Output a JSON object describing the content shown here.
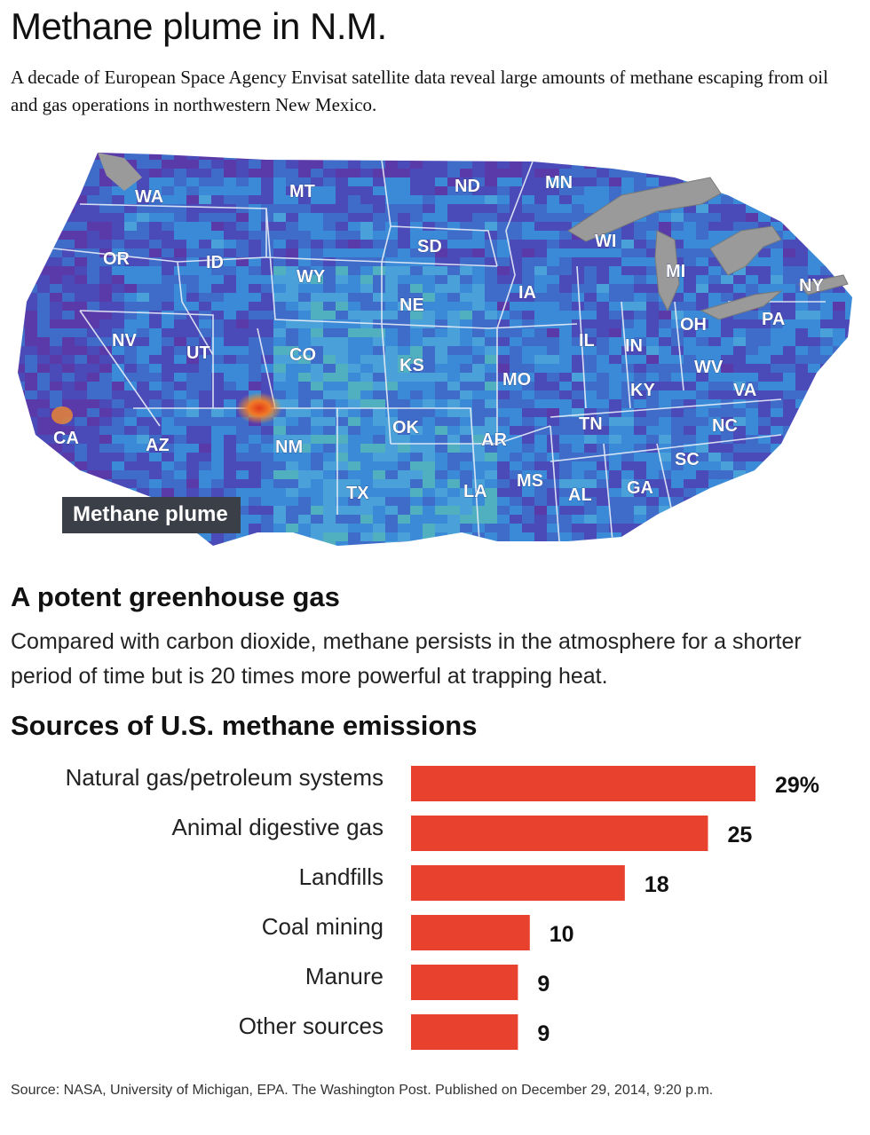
{
  "header": {
    "title": "Methane plume in N.M.",
    "subtitle": "A decade of European Space Agency Envisat satellite data reveal large amounts of methane escaping from oil and gas operations in northwestern New Mexico."
  },
  "map": {
    "states": [
      "WA",
      "MT",
      "ND",
      "MN",
      "OR",
      "ID",
      "SD",
      "WI",
      "WY",
      "MI",
      "NY",
      "IA",
      "NE",
      "PA",
      "NV",
      "UT",
      "OH",
      "CO",
      "IL",
      "IN",
      "KS",
      "WV",
      "MO",
      "KY",
      "VA",
      "CA",
      "AZ",
      "OK",
      "NM",
      "TN",
      "NC",
      "AR",
      "SC",
      "MS",
      "TX",
      "LA",
      "AL",
      "GA"
    ],
    "callout": "Methane plume",
    "colors": {
      "low": "#5a3aa8",
      "mid": "#3a8ad8",
      "high": "#6ac8a0",
      "hot": "#e84a20"
    }
  },
  "section": {
    "heading": "A potent greenhouse gas",
    "text": "Compared with carbon dioxide, methane persists in the atmosphere for a shorter period of time but is 20 times more powerful at trapping heat."
  },
  "chart_data": {
    "type": "bar",
    "orientation": "horizontal",
    "title": "Sources of U.S. methane emissions",
    "categories": [
      "Natural gas/petroleum systems",
      "Animal digestive gas",
      "Landfills",
      "Coal mining",
      "Manure",
      "Other sources"
    ],
    "values": [
      29,
      25,
      18,
      10,
      9,
      9
    ],
    "value_labels": [
      "29%",
      "25",
      "18",
      "10",
      "9",
      "9"
    ],
    "bar_color": "#e8412e",
    "xlim": [
      0,
      29
    ]
  },
  "footer": {
    "source": "Source: NASA, University of Michigan, EPA. The Washington Post. Published on December 29, 2014, 9:20 p.m."
  }
}
